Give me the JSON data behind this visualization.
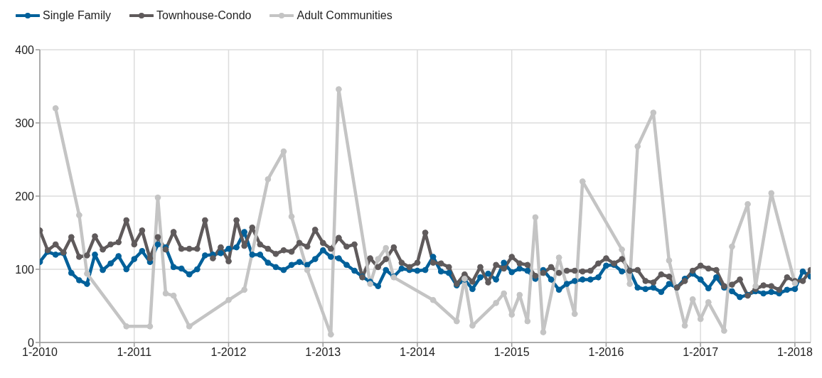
{
  "chart_data": {
    "type": "line",
    "legend": "top left",
    "grid": true,
    "marker": "circle",
    "x": [
      "2010-01",
      "2010-02",
      "2010-03",
      "2010-04",
      "2010-05",
      "2010-06",
      "2010-07",
      "2010-08",
      "2010-09",
      "2010-10",
      "2010-11",
      "2010-12",
      "2011-01",
      "2011-02",
      "2011-03",
      "2011-04",
      "2011-05",
      "2011-06",
      "2011-07",
      "2011-08",
      "2011-09",
      "2011-10",
      "2011-11",
      "2011-12",
      "2012-01",
      "2012-02",
      "2012-03",
      "2012-04",
      "2012-05",
      "2012-06",
      "2012-07",
      "2012-08",
      "2012-09",
      "2012-10",
      "2012-11",
      "2012-12",
      "2013-01",
      "2013-02",
      "2013-03",
      "2013-04",
      "2013-05",
      "2013-06",
      "2013-07",
      "2013-08",
      "2013-09",
      "2013-10",
      "2013-11",
      "2013-12",
      "2014-01",
      "2014-02",
      "2014-03",
      "2014-04",
      "2014-05",
      "2014-06",
      "2014-07",
      "2014-08",
      "2014-09",
      "2014-10",
      "2014-11",
      "2014-12",
      "2015-01",
      "2015-02",
      "2015-03",
      "2015-04",
      "2015-05",
      "2015-06",
      "2015-07",
      "2015-08",
      "2015-09",
      "2015-10",
      "2015-11",
      "2015-12",
      "2016-01",
      "2016-02",
      "2016-03",
      "2016-04",
      "2016-05",
      "2016-06",
      "2016-07",
      "2016-08",
      "2016-09",
      "2016-10",
      "2016-11",
      "2016-12",
      "2017-01",
      "2017-02",
      "2017-03",
      "2017-04",
      "2017-05",
      "2017-06",
      "2017-07",
      "2017-08",
      "2017-09",
      "2017-10",
      "2017-11",
      "2017-12",
      "2018-01",
      "2018-02",
      "2018-03"
    ],
    "xlim": [
      "2010-01",
      "2018-03"
    ],
    "xticks": [
      {
        "value": "2010-01",
        "label": "1-2010"
      },
      {
        "value": "2011-01",
        "label": "1-2011"
      },
      {
        "value": "2012-01",
        "label": "1-2012"
      },
      {
        "value": "2013-01",
        "label": "1-2013"
      },
      {
        "value": "2014-01",
        "label": "1-2014"
      },
      {
        "value": "2015-01",
        "label": "1-2015"
      },
      {
        "value": "2016-01",
        "label": "1-2016"
      },
      {
        "value": "2017-01",
        "label": "1-2017"
      },
      {
        "value": "2018-01",
        "label": "1-2018"
      }
    ],
    "ylim": [
      0,
      400
    ],
    "yticks": [
      0,
      100,
      200,
      300,
      400
    ],
    "series": [
      {
        "name": "Single Family",
        "color": "#00609a",
        "values": [
          110,
          124,
          120,
          122,
          95,
          85,
          80,
          120,
          99,
          108,
          118,
          100,
          114,
          125,
          110,
          134,
          130,
          103,
          101,
          93,
          100,
          119,
          120,
          122,
          128,
          130,
          151,
          120,
          120,
          109,
          103,
          99,
          106,
          110,
          106,
          114,
          126,
          117,
          115,
          106,
          98,
          90,
          83,
          77,
          99,
          90,
          101,
          99,
          98,
          99,
          117,
          97,
          95,
          78,
          86,
          73,
          89,
          94,
          86,
          109,
          96,
          101,
          98,
          87,
          99,
          86,
          72,
          80,
          84,
          86,
          86,
          89,
          105,
          106,
          97,
          98,
          75,
          73,
          75,
          69,
          80,
          75,
          87,
          94,
          86,
          74,
          89,
          75,
          70,
          62,
          65,
          70,
          67,
          69,
          67,
          72,
          73,
          97,
          90
        ]
      },
      {
        "name": "Townhouse-Condo",
        "color": "#5f5a5b",
        "values": [
          153,
          126,
          134,
          123,
          144,
          117,
          119,
          145,
          127,
          134,
          137,
          167,
          134,
          153,
          115,
          144,
          127,
          151,
          128,
          128,
          128,
          167,
          115,
          130,
          111,
          167,
          132,
          157,
          134,
          128,
          121,
          126,
          124,
          136,
          131,
          154,
          136,
          128,
          143,
          131,
          134,
          89,
          115,
          103,
          114,
          130,
          109,
          103,
          109,
          150,
          109,
          108,
          103,
          80,
          93,
          83,
          103,
          82,
          106,
          101,
          117,
          108,
          106,
          91,
          95,
          103,
          95,
          98,
          98,
          97,
          98,
          108,
          115,
          108,
          114,
          98,
          99,
          84,
          82,
          93,
          90,
          75,
          84,
          98,
          105,
          101,
          99,
          77,
          79,
          86,
          64,
          73,
          78,
          77,
          72,
          89,
          84,
          84,
          99
        ]
      },
      {
        "name": "Adult Communities",
        "color": "#c4c4c4",
        "values": [
          null,
          null,
          320,
          null,
          null,
          174,
          94,
          null,
          null,
          null,
          null,
          22,
          null,
          null,
          22,
          198,
          67,
          64,
          null,
          22,
          null,
          null,
          null,
          null,
          58,
          null,
          72,
          null,
          null,
          223,
          null,
          261,
          172,
          null,
          99,
          null,
          null,
          11,
          346,
          null,
          null,
          null,
          80,
          114,
          129,
          89,
          null,
          null,
          null,
          null,
          58,
          null,
          null,
          29,
          87,
          23,
          null,
          null,
          54,
          67,
          38,
          65,
          29,
          171,
          14,
          null,
          116,
          null,
          39,
          220,
          null,
          null,
          null,
          null,
          127,
          80,
          268,
          null,
          314,
          null,
          112,
          null,
          23,
          59,
          32,
          55,
          null,
          16,
          131,
          null,
          189,
          77,
          null,
          204,
          null,
          null,
          81,
          null,
          null
        ]
      }
    ]
  }
}
